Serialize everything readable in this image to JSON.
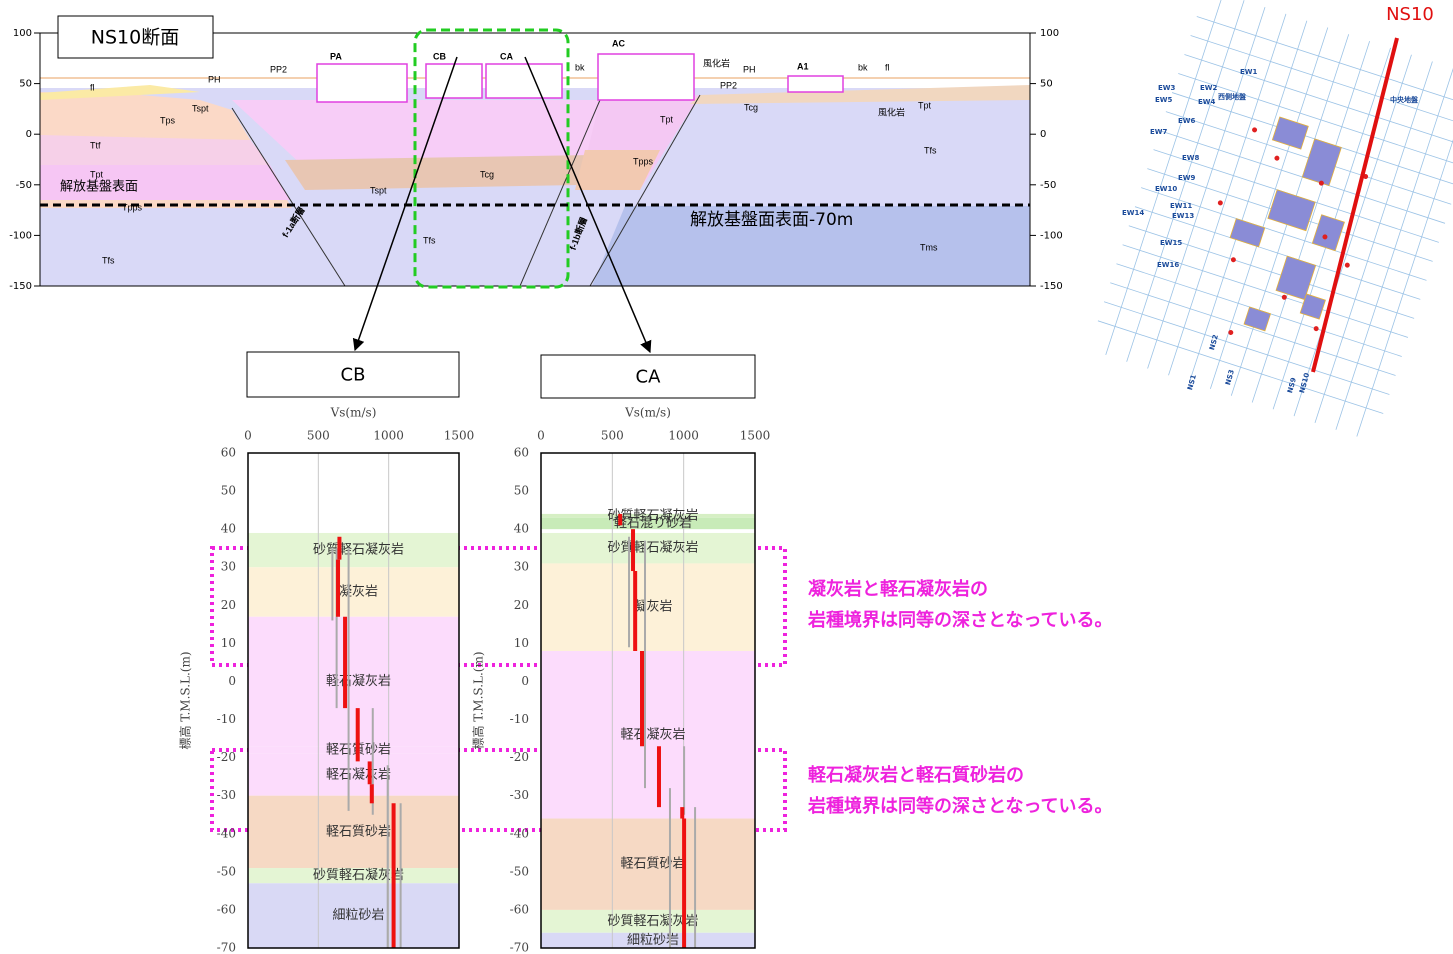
{
  "section": {
    "title": "NS10断面",
    "ylim": [
      -150,
      100
    ],
    "yticks": [
      100,
      50,
      0,
      -50,
      -100,
      -150
    ],
    "basement_level": -70,
    "basement_label": "解放基盤面表面-70m",
    "basement_left_label": "解放基盤表面",
    "labels": [
      "PA",
      "CB",
      "CA",
      "AC",
      "A1",
      "fl",
      "PH",
      "PP2",
      "Tspt",
      "Tps",
      "Ttf",
      "Tpt",
      "Tpt",
      "Tpps",
      "Tcg",
      "Tspt",
      "Tfs",
      "Tfs",
      "Tfs",
      "Tms",
      "Tpps",
      "Tcg",
      "bk",
      "bk",
      "風化岩",
      "風化岩",
      "Tpt",
      "PH",
      "PP2",
      "fl",
      "f-1a断層",
      "f-1b断層"
    ]
  },
  "map": {
    "label": "NS10",
    "labels": [
      "EW1",
      "EW2",
      "EW3",
      "EW4",
      "EW5",
      "EW6",
      "EW7",
      "EW8",
      "EW9",
      "EW10",
      "EW11",
      "EW13",
      "EW14",
      "EW15",
      "EW16",
      "NS1",
      "NS2",
      "NS3",
      "NS9",
      "NS10",
      "西側地盤",
      "中央地盤"
    ]
  },
  "chart_data": [
    {
      "type": "profile",
      "title": "CB",
      "xlabel": "Vs(m/s)",
      "ylabel": "標高 T.M.S.L.(m)",
      "xlim": [
        0,
        1500
      ],
      "xticks": [
        0,
        500,
        1000,
        1500
      ],
      "ylim": [
        -70,
        60
      ],
      "yticks": [
        60,
        50,
        40,
        30,
        20,
        10,
        0,
        -10,
        -20,
        -30,
        -40,
        -50,
        -60,
        -70
      ],
      "grid": true,
      "layers": [
        {
          "name": "砂質軽石凝灰岩",
          "top": 39,
          "bottom": 30,
          "color": "#e4f5d4"
        },
        {
          "name": "凝灰岩",
          "top": 30,
          "bottom": 17,
          "color": "#fdf1d8"
        },
        {
          "name": "軽石凝灰岩",
          "top": 17,
          "bottom": -17,
          "color": "#fcdcfc"
        },
        {
          "name": "軽石質砂岩",
          "top": -17,
          "bottom": -19,
          "color": "#fcdcfc"
        },
        {
          "name": "軽石凝灰岩",
          "top": -19,
          "bottom": -30,
          "color": "#fcdcfc"
        },
        {
          "name": "軽石質砂岩",
          "top": -30,
          "bottom": -49,
          "color": "#f6d9c4"
        },
        {
          "name": "砂質軽石凝灰岩",
          "top": -49,
          "bottom": -53,
          "color": "#e4f5d4"
        },
        {
          "name": "細粒砂岩",
          "top": -53,
          "bottom": -70,
          "color": "#d9d9f5"
        }
      ],
      "series": [
        {
          "color": "#aaaaaa",
          "width": 2,
          "segments": [
            {
              "vs": 600,
              "top": 35,
              "bottom": 16
            },
            {
              "vs": 630,
              "top": 35,
              "bottom": -7
            },
            {
              "vs": 715,
              "top": 35,
              "bottom": -34
            },
            {
              "vs": 887,
              "top": -7,
              "bottom": -35
            },
            {
              "vs": 993,
              "top": -22,
              "bottom": -70
            },
            {
              "vs": 1085,
              "top": -32,
              "bottom": -70
            }
          ]
        },
        {
          "color": "#ee1111",
          "width": 4,
          "segments": [
            {
              "vs": 650,
              "top": 38,
              "bottom": 32
            },
            {
              "vs": 640,
              "top": 32,
              "bottom": 17
            },
            {
              "vs": 690,
              "top": 17,
              "bottom": -7
            },
            {
              "vs": 780,
              "top": -7,
              "bottom": -21
            },
            {
              "vs": 865,
              "top": -21,
              "bottom": -27
            },
            {
              "vs": 880,
              "top": -27,
              "bottom": -32
            },
            {
              "vs": 1035,
              "top": -32,
              "bottom": -70
            }
          ]
        }
      ]
    },
    {
      "type": "profile",
      "title": "CA",
      "xlabel": "Vs(m/s)",
      "ylabel": "標高 T.M.S.L.(m)",
      "xlim": [
        0,
        1500
      ],
      "xticks": [
        0,
        500,
        1000,
        1500
      ],
      "ylim": [
        -70,
        60
      ],
      "yticks": [
        60,
        50,
        40,
        30,
        20,
        10,
        0,
        -10,
        -20,
        -30,
        -40,
        -50,
        -60,
        -70
      ],
      "grid": true,
      "layers": [
        {
          "name": "砂質軽石凝灰岩",
          "top": 44,
          "bottom": 43,
          "color": "#d6efc4"
        },
        {
          "name": "軽石混り砂岩",
          "top": 43,
          "bottom": 40,
          "color": "#c8ebb8"
        },
        {
          "name": "砂質軽石凝灰岩",
          "top": 39,
          "bottom": 31,
          "color": "#e4f5d4"
        },
        {
          "name": "凝灰岩",
          "top": 31,
          "bottom": 8,
          "color": "#fdf1d8"
        },
        {
          "name": "軽石凝灰岩",
          "top": 8,
          "bottom": -36,
          "color": "#fcdcfc"
        },
        {
          "name": "軽石質砂岩",
          "top": -36,
          "bottom": -60,
          "color": "#f6d9c4"
        },
        {
          "name": "砂質軽石凝灰岩",
          "top": -60,
          "bottom": -66,
          "color": "#e4f5d4"
        },
        {
          "name": "細粒砂岩",
          "top": -66,
          "bottom": -70,
          "color": "#d9d9f5"
        }
      ],
      "series": [
        {
          "color": "#aaaaaa",
          "width": 2,
          "segments": [
            {
              "vs": 617,
              "top": 38,
              "bottom": 9
            },
            {
              "vs": 729,
              "top": 37,
              "bottom": -28
            },
            {
              "vs": 904,
              "top": -28,
              "bottom": -70
            },
            {
              "vs": 1003,
              "top": -17,
              "bottom": -35
            },
            {
              "vs": 1080,
              "top": -33,
              "bottom": -70
            }
          ]
        },
        {
          "color": "#ee1111",
          "width": 4,
          "segments": [
            {
              "vs": 555,
              "top": 44,
              "bottom": 41
            },
            {
              "vs": 645,
              "top": 40,
              "bottom": 29
            },
            {
              "vs": 660,
              "top": 29,
              "bottom": 8
            },
            {
              "vs": 708,
              "top": 8,
              "bottom": -17
            },
            {
              "vs": 827,
              "top": -17,
              "bottom": -33
            },
            {
              "vs": 990,
              "top": -33,
              "bottom": -36
            },
            {
              "vs": 1003,
              "top": -36,
              "bottom": -70
            }
          ]
        }
      ]
    }
  ],
  "annotations": [
    {
      "lines": [
        "凝灰岩と軽石凝灰岩の",
        "岩種境界は同等の深さとなっている。"
      ]
    },
    {
      "lines": [
        "軽石凝灰岩と軽石質砂岩の",
        "岩種境界は同等の深さとなっている。"
      ]
    }
  ]
}
